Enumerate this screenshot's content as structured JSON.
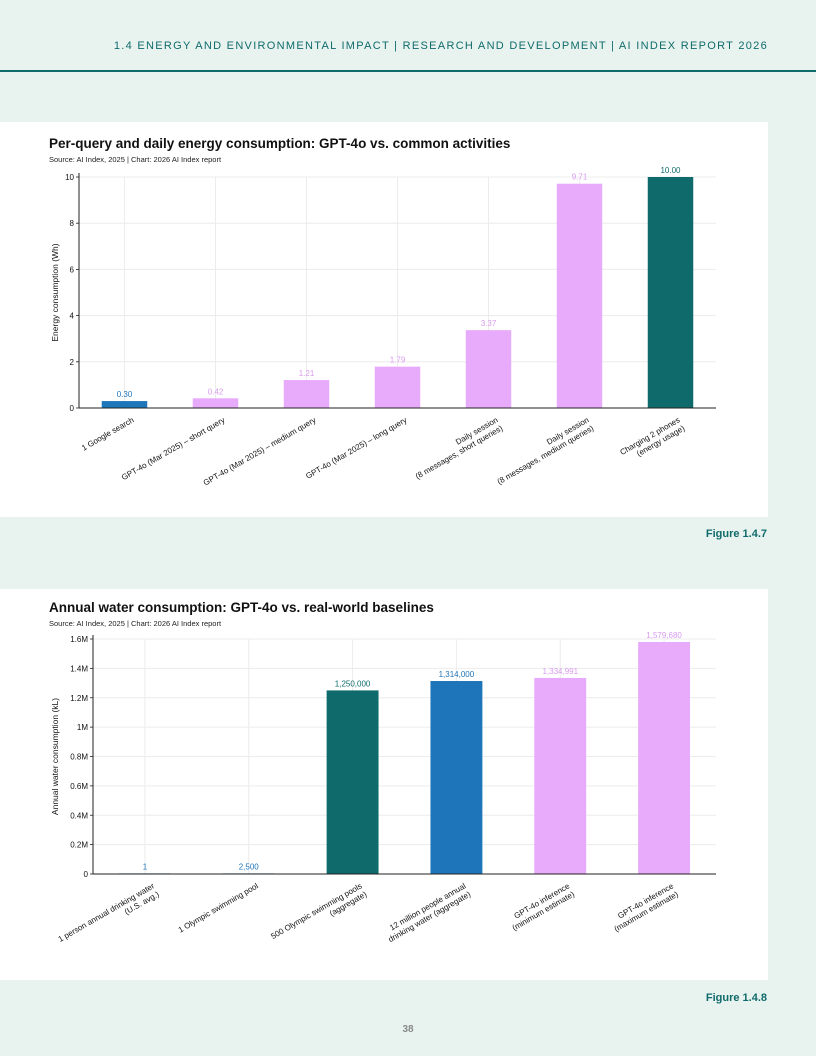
{
  "page": {
    "header": "1.4 ENERGY AND ENVIRONMENTAL IMPACT  |  RESEARCH AND DEVELOPMENT  |  AI INDEX REPORT 2026",
    "page_number": "38"
  },
  "colors": {
    "teal": "#0f6b6b",
    "blue": "#1f75b9",
    "pink": "#e8aafa",
    "pink_label": "#d99bef",
    "background": "#e8f3ef"
  },
  "chart_data": [
    {
      "type": "bar",
      "title": "Per-query and daily energy consumption: GPT-4o vs. common activities",
      "source": "Source: AI Index, 2025 | Chart: 2026 AI Index report",
      "figure": "Figure 1.4.7",
      "xlabel": "",
      "ylabel": "Energy consumption (Wh)",
      "ylim": [
        0,
        10
      ],
      "yticks": [
        0,
        2,
        4,
        6,
        8,
        10
      ],
      "ytick_labels": [
        "0",
        "2",
        "4",
        "6",
        "8",
        "10"
      ],
      "grid": true,
      "categories": [
        [
          "1 Google search"
        ],
        [
          "GPT-4o (Mar 2025) – short query"
        ],
        [
          "GPT-4o (Mar 2025) – medium query"
        ],
        [
          "GPT-4o (Mar 2025) – long query"
        ],
        [
          "Daily session",
          "(8 messages, short queries)"
        ],
        [
          "Daily session",
          "(8 messages, medium queries)"
        ],
        [
          "Charging 2 phones",
          "(energy usage)"
        ]
      ],
      "values": [
        0.3,
        0.42,
        1.21,
        1.79,
        3.37,
        9.71,
        10.0
      ],
      "labels": [
        "0.30",
        "0.42",
        "1.21",
        "1.79",
        "3.37",
        "9.71",
        "10.00"
      ],
      "bar_colors": [
        "blue",
        "pink",
        "pink",
        "pink",
        "pink",
        "pink",
        "teal"
      ]
    },
    {
      "type": "bar",
      "title": "Annual water consumption: GPT-4o vs. real-world baselines",
      "source": "Source: AI Index, 2025 | Chart: 2026 AI Index report",
      "figure": "Figure 1.4.8",
      "xlabel": "",
      "ylabel": "Annual water consumption (kL)",
      "ylim": [
        0,
        1600000
      ],
      "yticks": [
        0,
        200000,
        400000,
        600000,
        800000,
        1000000,
        1200000,
        1400000,
        1600000
      ],
      "ytick_labels": [
        "0",
        "0.2M",
        "0.4M",
        "0.6M",
        "0.8M",
        "1M",
        "1.2M",
        "1.4M",
        "1.6M"
      ],
      "grid": true,
      "categories": [
        [
          "1 person annual drinking water",
          "(U.S. avg.)"
        ],
        [
          "1 Olympic swimming pool"
        ],
        [
          "500 Olympic swimming pools",
          "(aggregate)"
        ],
        [
          "12 million people annual",
          "drinking water (aggregate)"
        ],
        [
          "GPT-4o inference",
          "(minimum estimate)"
        ],
        [
          "GPT-4o inference",
          "(maximum estimate)"
        ]
      ],
      "values": [
        1,
        2500,
        1250000,
        1314000,
        1334991,
        1579680
      ],
      "labels": [
        "1",
        "2,500",
        "1,250,000",
        "1,314,000",
        "1,334,991",
        "1,579,680"
      ],
      "bar_colors": [
        "blue",
        "blue",
        "teal",
        "blue",
        "pink",
        "pink"
      ]
    }
  ]
}
